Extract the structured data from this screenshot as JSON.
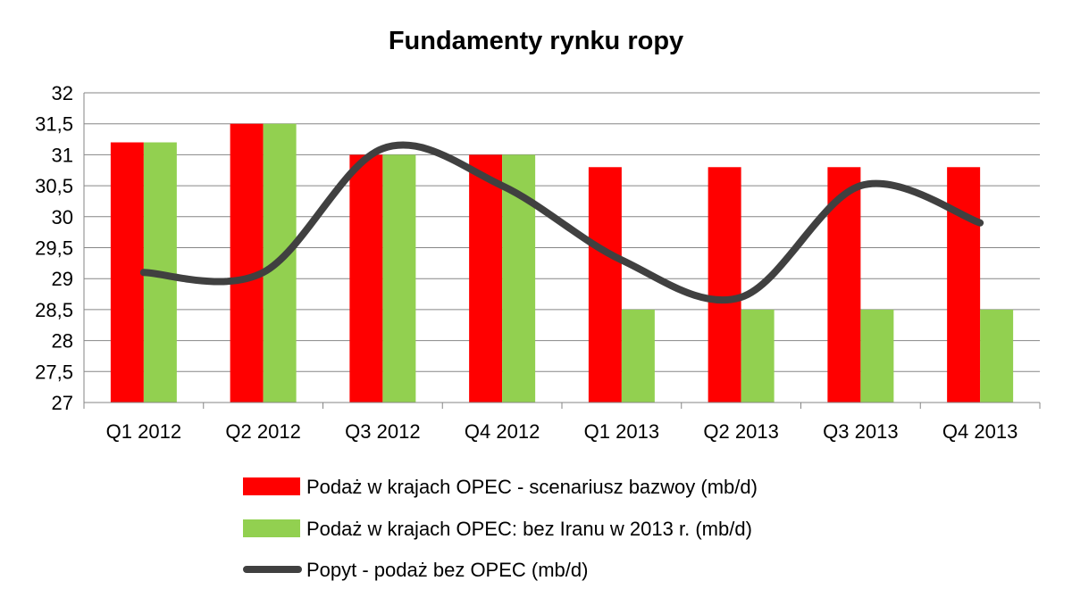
{
  "chart_data": {
    "type": "bar",
    "title": "Fundamenty rynku ropy",
    "xlabel": "",
    "ylabel": "",
    "categories": [
      "Q1 2012",
      "Q2 2012",
      "Q3 2012",
      "Q4 2012",
      "Q1 2013",
      "Q2 2013",
      "Q3 2013",
      "Q4 2013"
    ],
    "y_ticks": [
      "27",
      "27,5",
      "28",
      "28,5",
      "29",
      "29,5",
      "30",
      "30,5",
      "31",
      "31,5",
      "32"
    ],
    "ylim": [
      27,
      32
    ],
    "grid": true,
    "legend_position": "bottom",
    "series": [
      {
        "name": "Podaż w krajach OPEC - scenariusz bazwoy (mb/d)",
        "type": "bar",
        "color": "#ff0000",
        "values": [
          31.2,
          31.5,
          31.0,
          31.0,
          30.8,
          30.8,
          30.8,
          30.8
        ]
      },
      {
        "name": "Podaż w krajach OPEC: bez Iranu w 2013 r. (mb/d)",
        "type": "bar",
        "color": "#92d050",
        "values": [
          31.2,
          31.5,
          31.0,
          31.0,
          28.5,
          28.5,
          28.5,
          28.5
        ]
      },
      {
        "name": "Popyt - podaż bez OPEC (mb/d)",
        "type": "line",
        "smooth": true,
        "color": "#404040",
        "values": [
          29.1,
          29.1,
          31.1,
          30.5,
          29.3,
          28.7,
          30.5,
          29.9
        ]
      }
    ]
  }
}
